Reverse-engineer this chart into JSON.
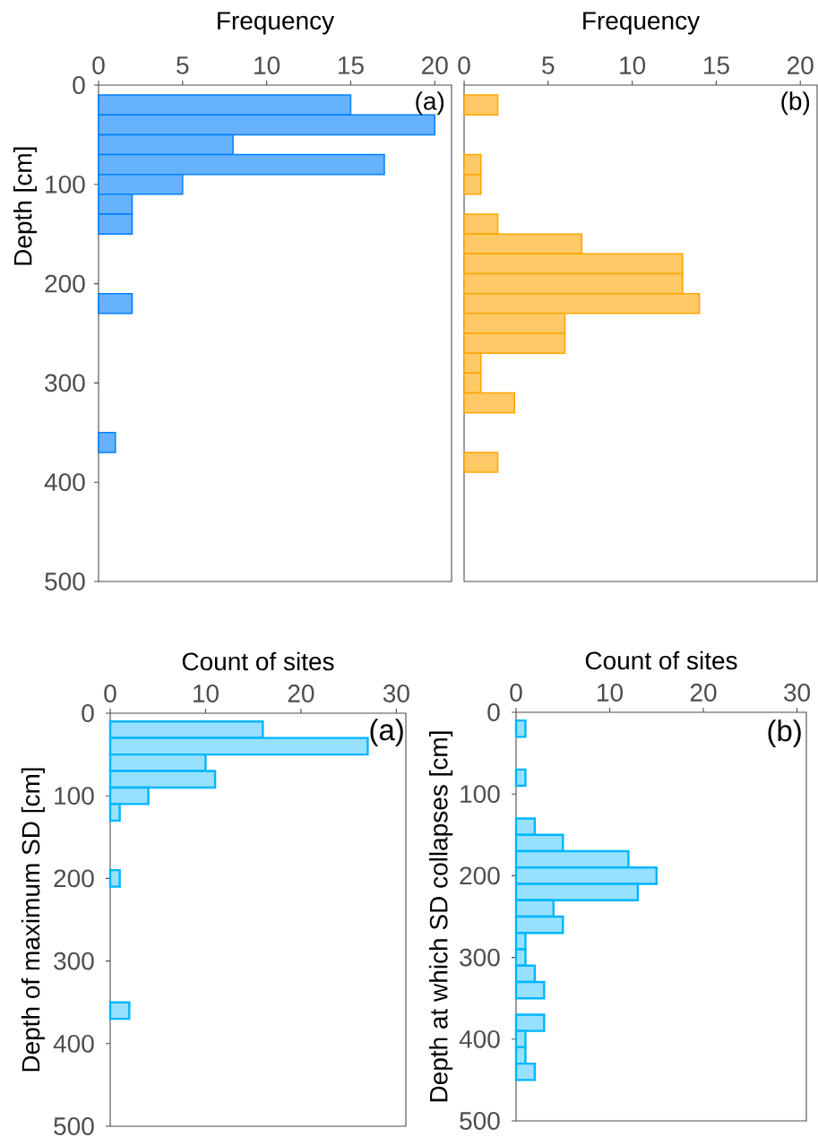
{
  "chart_data": [
    {
      "type": "histogram",
      "orientation": "horizontal",
      "xlabel": "Frequency",
      "ylabel": "Depth [cm]",
      "annotations": [
        "(a)"
      ],
      "bins": [
        10,
        30,
        50,
        70,
        90,
        110,
        130,
        150,
        170,
        190,
        210,
        230,
        250,
        270,
        290,
        310,
        330,
        350,
        370
      ],
      "values": [
        15,
        20,
        8,
        17,
        5,
        2,
        2,
        0,
        0,
        0,
        2,
        0,
        0,
        0,
        0,
        0,
        0,
        1
      ],
      "color": "#66b2ff",
      "xlim": [
        0,
        21
      ],
      "xticks": [
        0,
        5,
        10,
        15,
        20
      ],
      "ylim": [
        500,
        0
      ],
      "yticks": [
        0,
        100,
        200,
        300,
        400,
        500
      ]
    },
    {
      "type": "histogram",
      "orientation": "horizontal",
      "xlabel": "Frequency",
      "annotations": [
        "(b)"
      ],
      "bins": [
        10,
        30,
        50,
        70,
        90,
        110,
        130,
        150,
        170,
        190,
        210,
        230,
        250,
        270,
        290,
        310,
        330,
        350,
        370,
        390
      ],
      "values": [
        2,
        0,
        0,
        1,
        1,
        0,
        2,
        7,
        13,
        13,
        14,
        6,
        6,
        1,
        1,
        3,
        0,
        0,
        2
      ],
      "color": "#ffc966",
      "xlim": [
        0,
        21
      ],
      "xticks": [
        0,
        5,
        10,
        15,
        20
      ],
      "ylim": [
        500,
        0
      ],
      "tick_labels": "x"
    },
    {
      "type": "histogram",
      "orientation": "horizontal",
      "xlabel": "Count of sites",
      "ylabel": "Depth of maximum SD [cm]",
      "annotations": [
        "(a)"
      ],
      "bins": [
        10,
        30,
        50,
        70,
        90,
        110,
        130,
        150,
        170,
        190,
        210,
        230,
        250,
        270,
        290,
        310,
        330,
        350,
        370
      ],
      "values": [
        16,
        27,
        10,
        11,
        4,
        1,
        0,
        0,
        0,
        1,
        0,
        0,
        0,
        0,
        0,
        0,
        0,
        2
      ],
      "color": "#97e1ff",
      "xlim": [
        0,
        31
      ],
      "xticks": [
        0,
        10,
        20,
        30
      ],
      "ylim": [
        500,
        0
      ],
      "yticks": [
        0,
        100,
        200,
        300,
        400,
        500
      ]
    },
    {
      "type": "histogram",
      "orientation": "horizontal",
      "xlabel": "Count of sites",
      "ylabel": "Depth at which SD collapses [cm]",
      "annotations": [
        "(b)"
      ],
      "bins": [
        10,
        30,
        50,
        70,
        90,
        110,
        130,
        150,
        170,
        190,
        210,
        230,
        250,
        270,
        290,
        310,
        330,
        350,
        370,
        390,
        410,
        430,
        450
      ],
      "values": [
        1,
        0,
        0,
        1,
        0,
        0,
        2,
        5,
        12,
        15,
        13,
        4,
        5,
        1,
        1,
        2,
        3,
        0,
        3,
        1,
        1,
        2
      ],
      "color": "#97e1ff",
      "xlim": [
        0,
        31
      ],
      "xticks": [
        0,
        10,
        20,
        30
      ],
      "ylim": [
        500,
        0
      ],
      "yticks": [
        0,
        100,
        200,
        300,
        400,
        500
      ]
    }
  ]
}
